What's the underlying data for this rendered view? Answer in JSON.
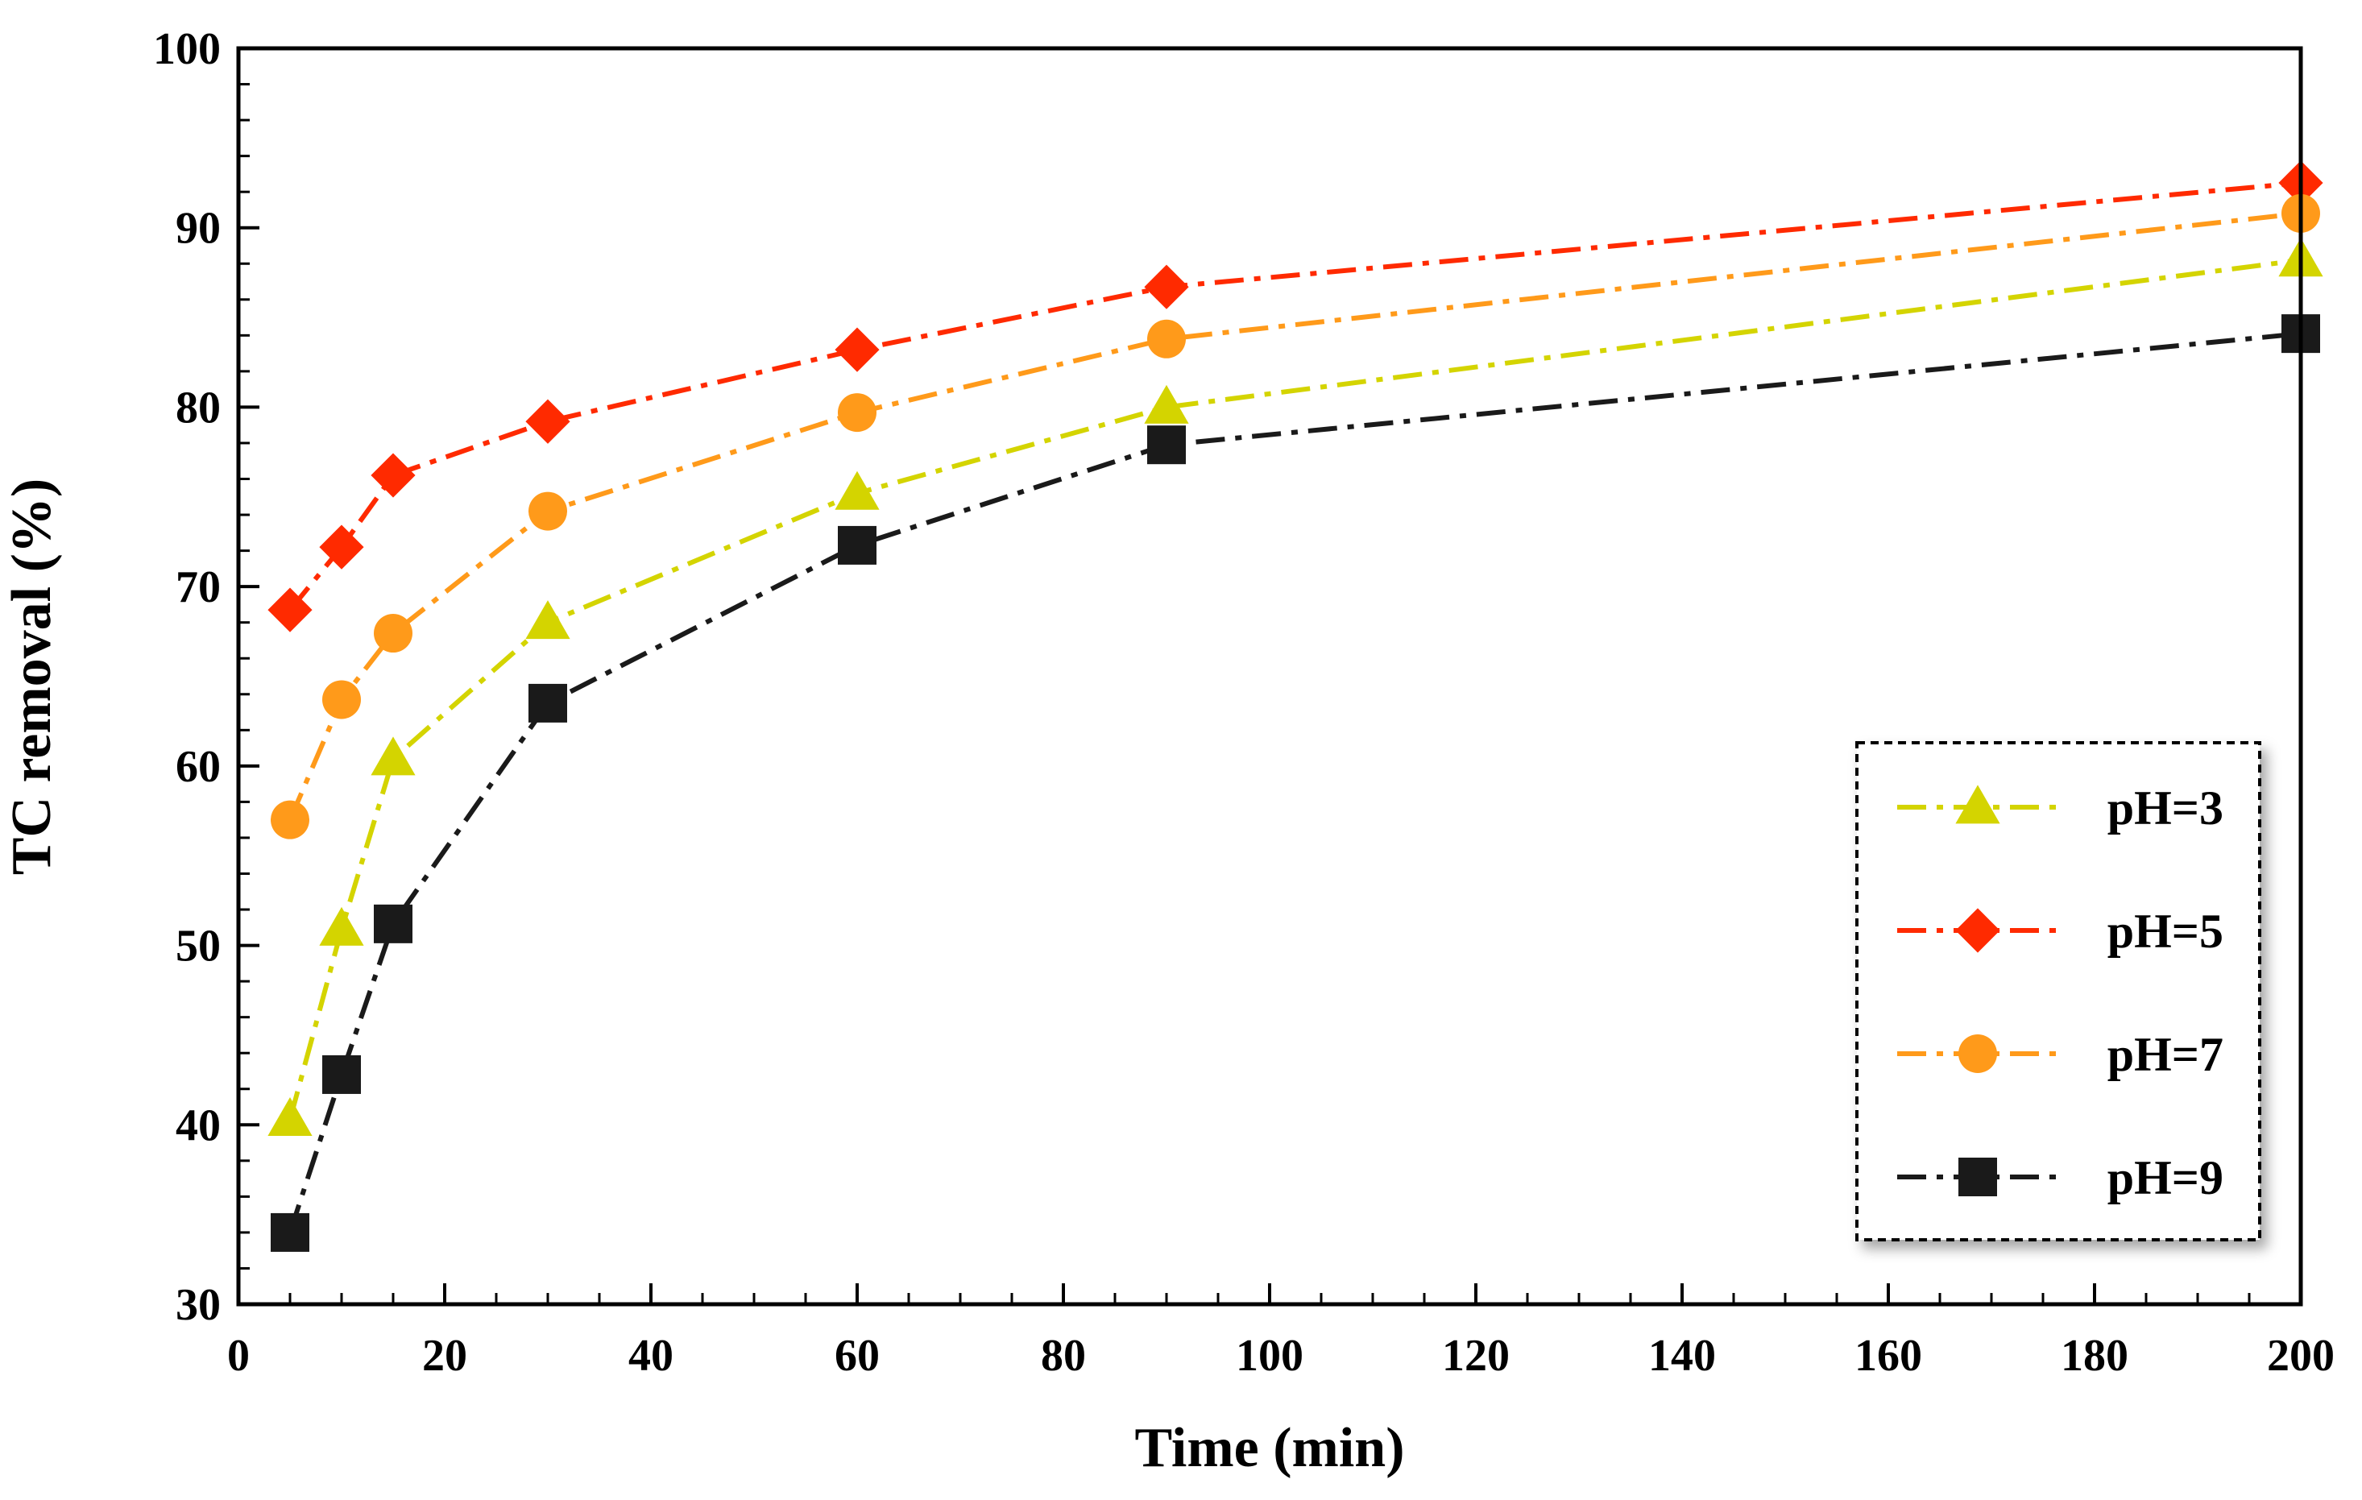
{
  "chart_data": {
    "type": "line",
    "title": "",
    "xlabel": "Time (min)",
    "ylabel": "TC removal (%)",
    "xlim": [
      0,
      200
    ],
    "ylim": [
      30,
      100
    ],
    "xticks": [
      0,
      20,
      40,
      60,
      80,
      100,
      120,
      140,
      160,
      180,
      200
    ],
    "yticks": [
      30,
      40,
      50,
      60,
      70,
      80,
      90,
      100
    ],
    "x": [
      5,
      10,
      15,
      30,
      60,
      90,
      200
    ],
    "grid": false,
    "legend_position": "bottom-right",
    "series": [
      {
        "name": "pH=3",
        "marker": "triangle",
        "color": "#d4d400",
        "values": [
          40.3,
          50.9,
          60.4,
          68.0,
          75.2,
          80.0,
          88.2
        ]
      },
      {
        "name": "pH=5",
        "marker": "diamond",
        "color": "#ff2a00",
        "values": [
          68.7,
          72.2,
          76.2,
          79.2,
          83.2,
          86.7,
          92.5
        ]
      },
      {
        "name": "pH=7",
        "marker": "circle",
        "color": "#ff9a1a",
        "values": [
          57.0,
          63.7,
          67.4,
          74.2,
          79.7,
          83.8,
          90.8
        ]
      },
      {
        "name": "pH=9",
        "marker": "square",
        "color": "#1a1a1a",
        "values": [
          34.0,
          42.8,
          51.2,
          63.5,
          72.3,
          77.9,
          84.1
        ]
      }
    ]
  }
}
